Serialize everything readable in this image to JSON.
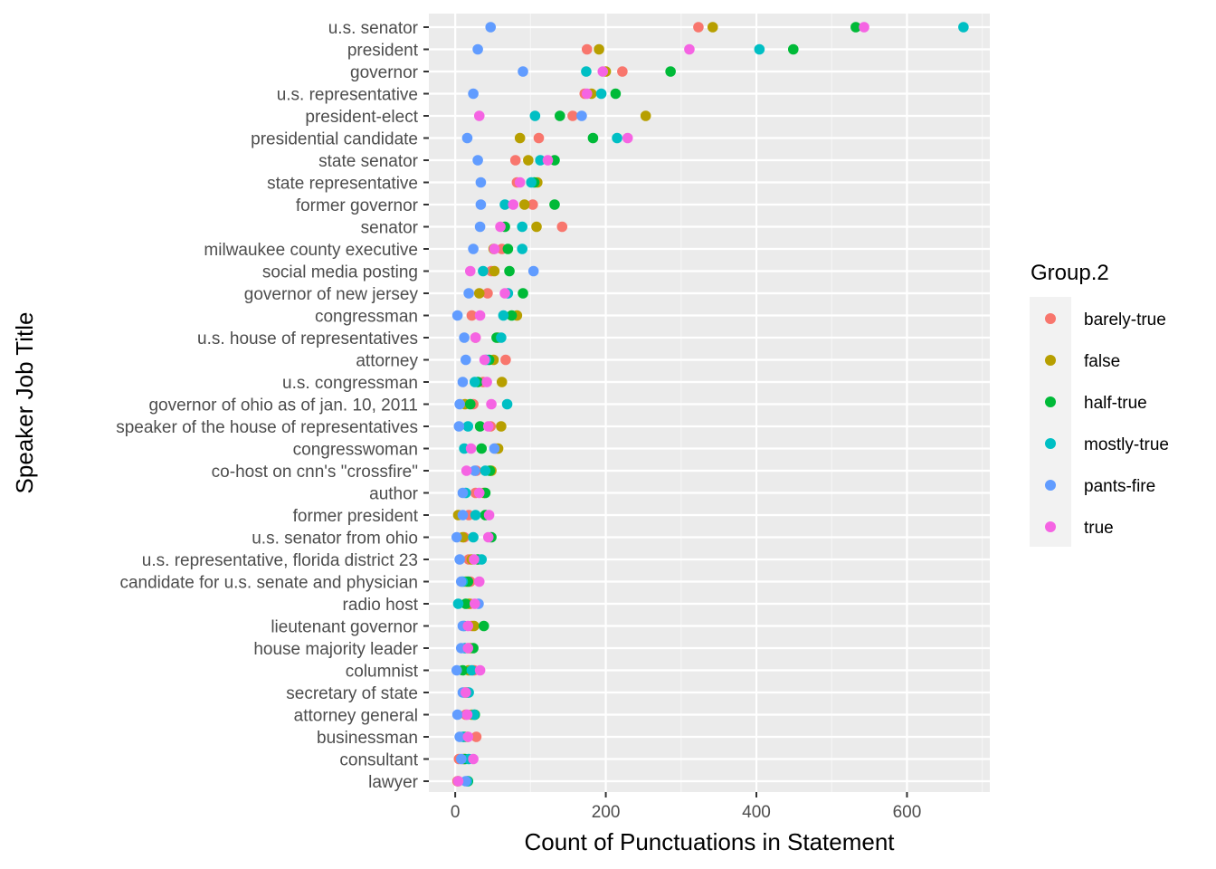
{
  "chart_data": {
    "type": "scatter",
    "xlabel": "Count of Punctuations in Statement",
    "ylabel": "Speaker Job Title",
    "xlim": [
      -35,
      710
    ],
    "x_ticks": [
      0,
      200,
      400,
      600
    ],
    "grid": true,
    "legend": {
      "title": "Group.2",
      "placement": "right"
    },
    "categories": [
      "u.s. senator",
      "president",
      "governor",
      "u.s. representative",
      "president-elect",
      "presidential candidate",
      "state senator",
      "state representative",
      "former governor",
      "senator",
      "milwaukee county executive",
      "social media posting",
      "governor of new jersey",
      "congressman",
      "u.s. house of representatives",
      "attorney",
      "u.s. congressman",
      "governor of ohio as of jan. 10, 2011",
      "speaker of the house of representatives",
      "congresswoman",
      "co-host on cnn's \"crossfire\"",
      "author",
      "former president",
      "u.s. senator from ohio",
      "u.s. representative, florida district 23",
      "candidate for u.s. senate and physician",
      "radio host",
      "lieutenant governor",
      "house majority leader",
      "columnist",
      "secretary of state",
      "attorney general",
      "businessman",
      "consultant",
      "lawyer"
    ],
    "series": [
      {
        "name": "barely-true",
        "color": "#F8766D",
        "values": [
          323,
          175,
          222,
          172,
          156,
          111,
          80,
          82,
          103,
          142,
          62,
          48,
          43,
          22,
          27,
          67,
          37,
          24,
          47,
          54,
          28,
          27,
          18,
          12,
          18,
          20,
          20,
          22,
          17,
          25,
          12,
          14,
          28,
          5,
          3
        ]
      },
      {
        "name": "false",
        "color": "#B79F00",
        "values": [
          342,
          191,
          200,
          181,
          253,
          86,
          97,
          109,
          92,
          108,
          51,
          52,
          32,
          82,
          57,
          51,
          62,
          13,
          61,
          57,
          48,
          38,
          4,
          10,
          22,
          14,
          18,
          25,
          20,
          18,
          14,
          22,
          16,
          11,
          4
        ]
      },
      {
        "name": "half-true",
        "color": "#00BA38",
        "values": [
          532,
          449,
          286,
          213,
          139,
          183,
          132,
          105,
          132,
          66,
          70,
          72,
          90,
          75,
          55,
          45,
          30,
          20,
          33,
          35,
          46,
          40,
          40,
          48,
          30,
          17,
          14,
          38,
          24,
          10,
          16,
          26,
          12,
          13,
          17
        ]
      },
      {
        "name": "mostly-true",
        "color": "#00BFC4",
        "values": [
          675,
          404,
          174,
          194,
          106,
          215,
          113,
          101,
          66,
          89,
          89,
          37,
          70,
          64,
          61,
          41,
          26,
          69,
          17,
          12,
          40,
          14,
          27,
          24,
          35,
          10,
          4,
          12,
          13,
          22,
          18,
          25,
          10,
          18,
          16
        ]
      },
      {
        "name": "pants-fire",
        "color": "#619CFF",
        "values": [
          47,
          30,
          90,
          24,
          168,
          16,
          30,
          34,
          34,
          33,
          24,
          104,
          18,
          3,
          12,
          14,
          10,
          6,
          5,
          52,
          26,
          10,
          10,
          2,
          6,
          8,
          31,
          10,
          8,
          2,
          10,
          3,
          6,
          8,
          14
        ]
      },
      {
        "name": "true",
        "color": "#F564E3",
        "values": [
          543,
          311,
          196,
          175,
          32,
          229,
          123,
          86,
          77,
          60,
          52,
          20,
          66,
          33,
          27,
          39,
          42,
          48,
          44,
          21,
          15,
          32,
          45,
          44,
          25,
          32,
          26,
          17,
          17,
          33,
          14,
          16,
          17,
          24,
          4
        ]
      }
    ]
  }
}
